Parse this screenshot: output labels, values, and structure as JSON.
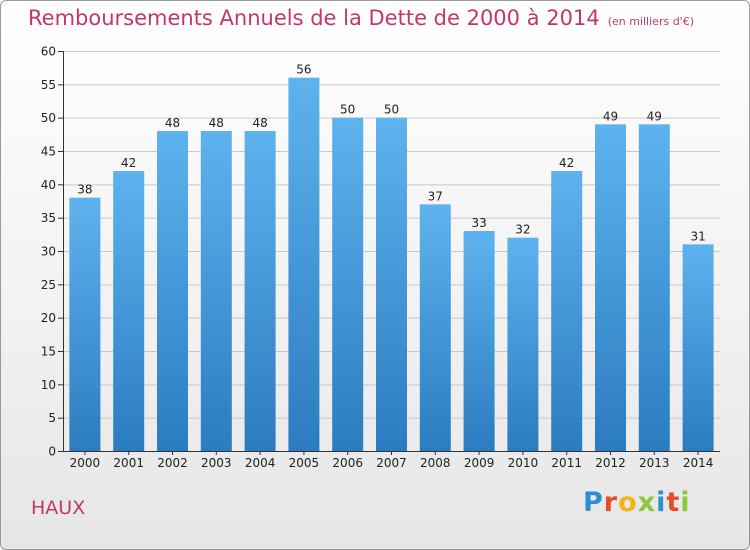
{
  "header": {
    "title": "Remboursements Annuels de la Dette de 2000 à 2014",
    "unit": "(en milliers d'€)"
  },
  "footer": {
    "commune": "HAUX",
    "brand": "Proxiti",
    "brand_letter_colors": [
      "#2e8fd0",
      "#e84b26",
      "#f2b418",
      "#8ec63f",
      "#2e8fd0",
      "#e84b26",
      "#8ec63f"
    ]
  },
  "colors": {
    "title": "#c4366b",
    "bar_top": "#5eb3ee",
    "bar_bottom": "#2b7cc0",
    "grid": "#c9c9c9",
    "axis": "#333333"
  },
  "chart_data": {
    "type": "bar",
    "title": "Remboursements Annuels de la Dette de 2000 à 2014",
    "xlabel": "",
    "ylabel": "",
    "categories": [
      "2000",
      "2001",
      "2002",
      "2003",
      "2004",
      "2005",
      "2006",
      "2007",
      "2008",
      "2009",
      "2010",
      "2011",
      "2012",
      "2013",
      "2014"
    ],
    "values": [
      38,
      42,
      48,
      48,
      48,
      56,
      50,
      50,
      37,
      33,
      32,
      42,
      49,
      49,
      31
    ],
    "ylim": [
      0,
      60
    ],
    "yticks": [
      0,
      5,
      10,
      15,
      20,
      25,
      30,
      35,
      40,
      45,
      50,
      55,
      60
    ],
    "grid": true,
    "data_labels": true
  }
}
